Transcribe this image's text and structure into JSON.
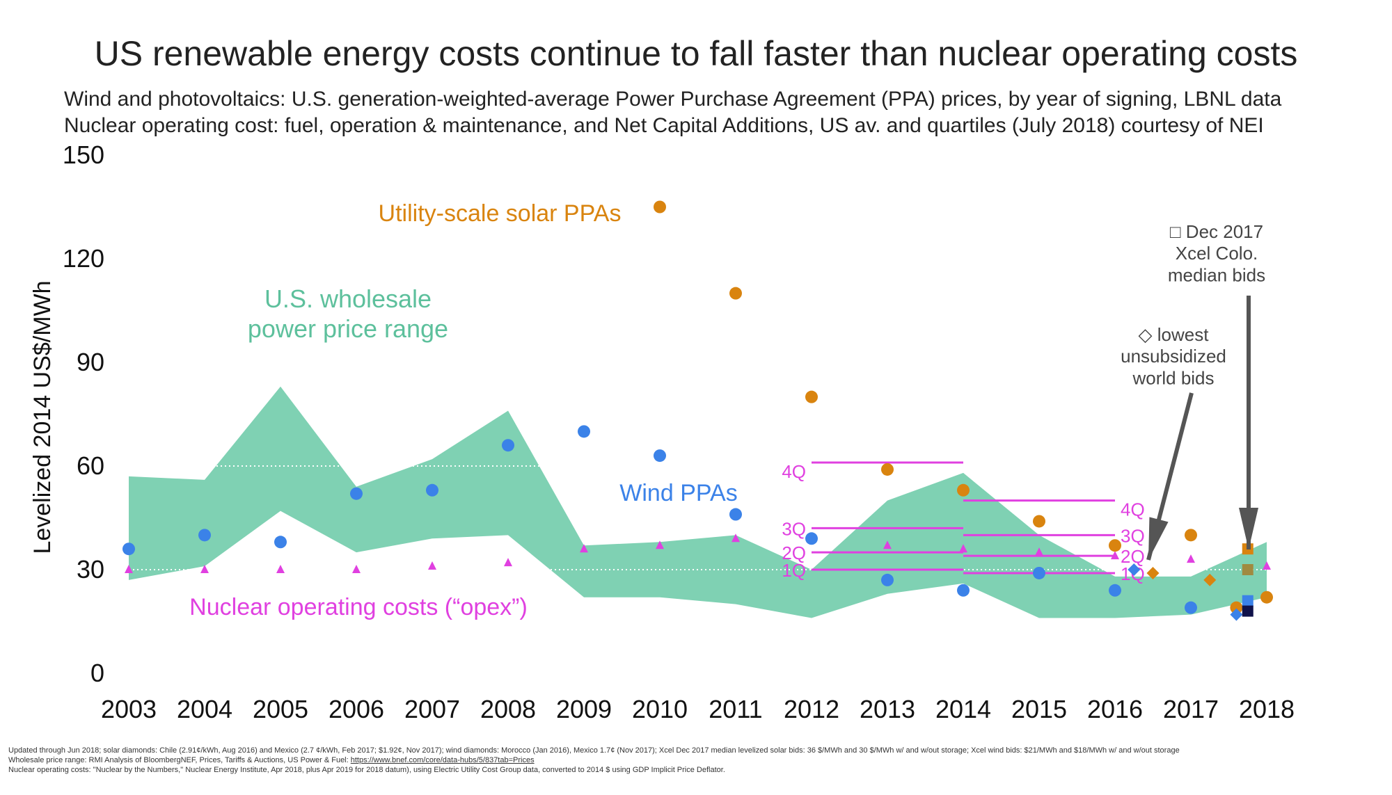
{
  "title": "US renewable energy costs continue to fall faster than nuclear operating costs",
  "subtitle1": "Wind and photovoltaics: U.S. generation-weighted-average Power Purchase Agreement (PPA) prices, by year of signing, LBNL data",
  "subtitle2": "Nuclear operating cost: fuel, operation & maintenance, and Net Capital Additions, US av. and quartiles (July 2018) courtesy of NEI",
  "footnotes": [
    "Updated through Jun 2018; solar diamonds: Chile (2.91¢/kWh, Aug 2016) and Mexico (2.7 ¢/kWh, Feb 2017; $1.92¢, Nov 2017); wind diamonds: Morocco (Jan 2016), Mexico 1.7¢ (Nov 2017); Xcel Dec 2017 median levelized solar bids: 36 $/MWh and 30 $/MWh w/ and w/out storage; Xcel wind bids: $21/MWh and $18/MWh w/ and w/out storage",
    "Wholesale price range: RMI Analysis of BloombergNEF, Prices, Tariffs & Auctions, US Power & Fuel:",
    "https://www.bnef.com/core/data-hubs/5/837tab=Prices",
    "Nuclear operating costs: \"Nuclear by the Numbers,\" Nuclear Energy Institute, Apr 2018, plus Apr 2019 for 2018 datum), using Electric Utility Cost Group data, converted to 2014 $ using GDP Implicit Price Deflator."
  ],
  "colors": {
    "wind": "#3b82e8",
    "solar": "#d9840f",
    "nuclear": "#e040e0",
    "range": "#7fd1b3",
    "arrow": "#555555",
    "xcel_dark": "#10124a",
    "xcel_olive": "#a08a40"
  },
  "chart_data": {
    "type": "scatter",
    "ylabel": "Levelized 2014 US$/MWh",
    "ylim": [
      0,
      150
    ],
    "yticks": [
      0,
      30,
      60,
      90,
      120,
      150
    ],
    "xticks": [
      2003,
      2004,
      2005,
      2006,
      2007,
      2008,
      2009,
      2010,
      2011,
      2012,
      2013,
      2014,
      2015,
      2016,
      2017,
      2018
    ],
    "grid_dotted_y": [
      30,
      60
    ],
    "labels": {
      "solar": "Utility-scale solar PPAs",
      "wind": "Wind PPAs",
      "range": "U.S. wholesale\npower price range",
      "nuclear": "Nuclear operating costs (“opex”)",
      "xcel": "□ Dec 2017\nXcel Colo.\nmedian bids",
      "lowest": "◇ lowest\nunsubsidized\nworld bids"
    },
    "wholesale_range": {
      "x": [
        2003,
        2004,
        2005,
        2006,
        2007,
        2008,
        2009,
        2010,
        2011,
        2012,
        2013,
        2014,
        2015,
        2016,
        2017,
        2018
      ],
      "upper": [
        57,
        56,
        83,
        54,
        62,
        76,
        37,
        38,
        40,
        30,
        50,
        58,
        40,
        28,
        28,
        38
      ],
      "lower": [
        27,
        31,
        47,
        35,
        39,
        40,
        22,
        22,
        20,
        16,
        23,
        26,
        16,
        16,
        17,
        22
      ]
    },
    "wind": {
      "x": [
        2003,
        2004,
        2005,
        2006,
        2007,
        2008,
        2009,
        2010,
        2011,
        2012,
        2013,
        2014,
        2015,
        2016,
        2017
      ],
      "y": [
        36,
        40,
        38,
        52,
        53,
        66,
        70,
        63,
        46,
        39,
        27,
        24,
        29,
        24,
        19
      ]
    },
    "solar": {
      "x": [
        2010,
        2011,
        2012,
        2013,
        2014,
        2015,
        2016,
        2017,
        2018,
        2017.6
      ],
      "y": [
        135,
        110,
        80,
        59,
        53,
        44,
        37,
        40,
        22,
        19
      ]
    },
    "nuclear": {
      "x": [
        2003,
        2004,
        2005,
        2006,
        2007,
        2008,
        2009,
        2010,
        2011,
        2013,
        2014,
        2015,
        2016,
        2017,
        2018
      ],
      "y": [
        30,
        30,
        30,
        30,
        31,
        32,
        36,
        37,
        39,
        37,
        36,
        35,
        34,
        33,
        31
      ]
    },
    "nuclear_quartiles": [
      {
        "x": [
          2012,
          2014
        ],
        "q": [
          {
            "label": "1Q",
            "y": 30
          },
          {
            "label": "2Q",
            "y": 35
          },
          {
            "label": "3Q",
            "y": 42
          },
          {
            "label": "4Q",
            "y": 61
          }
        ]
      },
      {
        "x": [
          2014,
          2016
        ],
        "q": [
          {
            "label": "1Q",
            "y": 29
          },
          {
            "label": "2Q",
            "y": 34
          },
          {
            "label": "3Q",
            "y": 40
          },
          {
            "label": "4Q",
            "y": 50
          }
        ]
      }
    ],
    "lowest_bids": [
      {
        "x": 2016.25,
        "y": 30,
        "type": "wind"
      },
      {
        "x": 2016.5,
        "y": 29,
        "type": "solar"
      },
      {
        "x": 2017.25,
        "y": 27,
        "type": "solar"
      },
      {
        "x": 2017.6,
        "y": 17,
        "type": "wind"
      }
    ],
    "xcel_bids": [
      {
        "x": 2017.75,
        "y": 36,
        "type": "solar-storage"
      },
      {
        "x": 2017.75,
        "y": 30,
        "type": "solar"
      },
      {
        "x": 2017.75,
        "y": 21,
        "type": "wind-storage"
      },
      {
        "x": 2017.75,
        "y": 18,
        "type": "wind"
      }
    ]
  }
}
